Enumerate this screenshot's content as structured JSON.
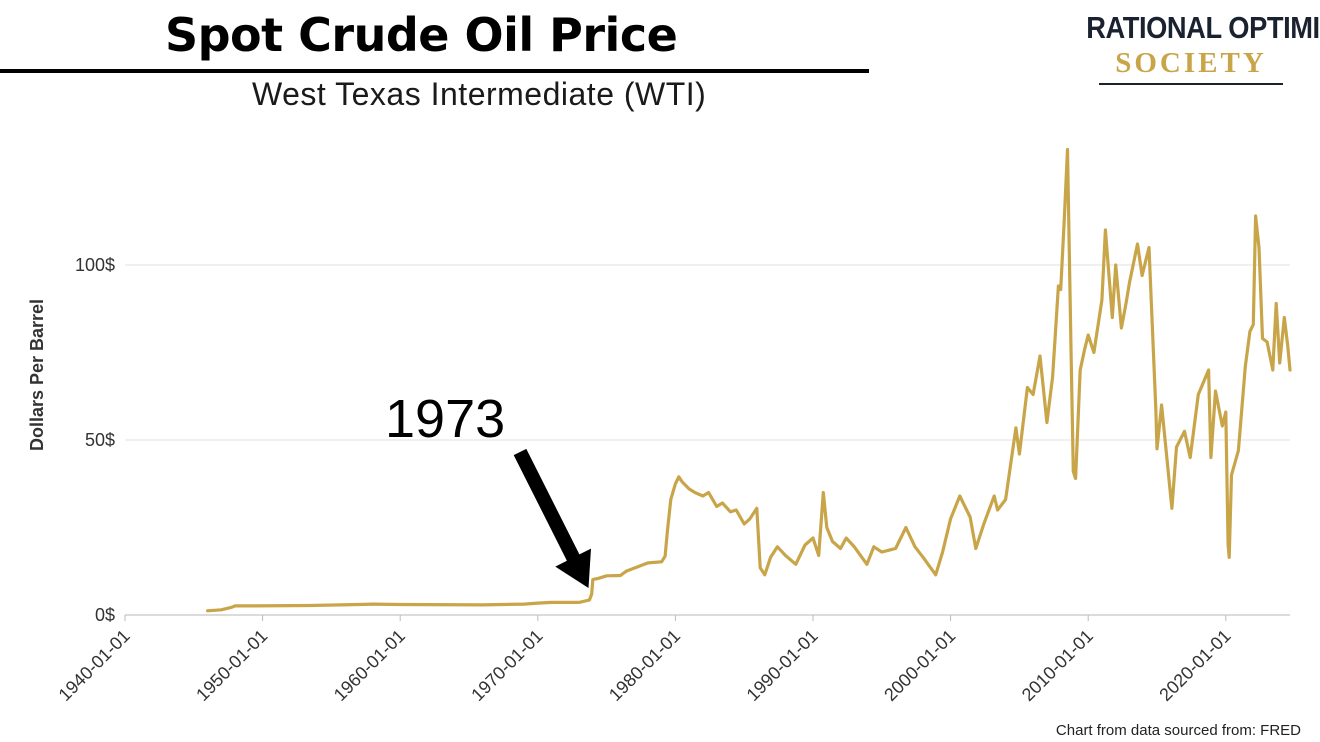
{
  "header": {
    "title": "Spot Crude Oil Price",
    "subtitle": "West Texas Intermediate (WTI)"
  },
  "logo": {
    "line1": "RATIONAL OPTIMIST",
    "line2": "SOCIETY"
  },
  "source": "Chart from data sourced from: FRED",
  "colors": {
    "line": "#c9a54a",
    "grid": "#e6e6e6",
    "arrow": "#000000"
  },
  "chart_data": {
    "type": "line",
    "title": "Spot Crude Oil Price",
    "subtitle": "West Texas Intermediate (WTI)",
    "xlabel": "",
    "ylabel": "Dollars Per Barrel",
    "xlim": [
      "1940-01-01",
      "2024-09-01"
    ],
    "ylim": [
      0,
      140
    ],
    "grid": "horizontal",
    "x_ticks": [
      "1940-01-01",
      "1950-01-01",
      "1960-01-01",
      "1970-01-01",
      "1980-01-01",
      "1990-01-01",
      "2000-01-01",
      "2010-01-01",
      "2020-01-01"
    ],
    "y_ticks": [
      {
        "value": 0,
        "label": "0$"
      },
      {
        "value": 50,
        "label": "50$"
      },
      {
        "value": 100,
        "label": "100$"
      }
    ],
    "annotation": {
      "text": "1973",
      "points_to_year": 1973.9,
      "points_to_value": 4.3
    },
    "series": [
      {
        "x": [
          "1946-01-01",
          "1947-01-01",
          "1947-10-01",
          "1948-01-01",
          "1949-06-01",
          "1953-06-01",
          "1957-01-01",
          "1958-01-01",
          "1960-01-01",
          "1966-01-01",
          "1969-01-01",
          "1970-01-01",
          "1971-01-01",
          "1973-01-01",
          "1973-10-01",
          "1973-12-01",
          "1974-01-01",
          "1974-06-01",
          "1975-01-01",
          "1976-01-01",
          "1976-06-01",
          "1977-06-01",
          "1978-01-01",
          "1979-01-01",
          "1979-04-01",
          "1979-06-01",
          "1979-09-01",
          "1980-01-01",
          "1980-04-01",
          "1980-07-01",
          "1981-01-01",
          "1981-06-01",
          "1982-01-01",
          "1982-06-01",
          "1983-01-01",
          "1983-06-01",
          "1984-01-01",
          "1984-06-01",
          "1985-01-01",
          "1985-06-01",
          "1985-12-01",
          "1986-03-01",
          "1986-07-01",
          "1986-12-01",
          "1987-06-01",
          "1988-01-01",
          "1988-10-01",
          "1989-06-01",
          "1990-01-01",
          "1990-06-01",
          "1990-10-01",
          "1991-01-01",
          "1991-06-01",
          "1992-01-01",
          "1992-06-01",
          "1993-01-01",
          "1993-12-01",
          "1994-06-01",
          "1995-01-01",
          "1996-01-01",
          "1996-10-01",
          "1997-06-01",
          "1998-01-01",
          "1998-12-01",
          "1999-06-01",
          "2000-01-01",
          "2000-09-01",
          "2001-06-01",
          "2001-11-01",
          "2002-06-01",
          "2003-03-01",
          "2003-06-01",
          "2004-01-01",
          "2004-10-01",
          "2005-01-01",
          "2005-08-01",
          "2006-01-01",
          "2006-07-01",
          "2007-01-01",
          "2007-06-01",
          "2007-11-01",
          "2008-01-01",
          "2008-04-01",
          "2008-07-01",
          "2008-10-01",
          "2008-12-01",
          "2009-02-01",
          "2009-06-01",
          "2009-10-01",
          "2010-01-01",
          "2010-06-01",
          "2011-01-01",
          "2011-04-01",
          "2011-10-01",
          "2012-01-01",
          "2012-06-01",
          "2012-10-01",
          "2013-01-01",
          "2013-08-01",
          "2013-12-01",
          "2014-06-01",
          "2014-12-01",
          "2015-01-01",
          "2015-05-01",
          "2015-12-01",
          "2016-02-01",
          "2016-06-01",
          "2017-01-01",
          "2017-06-01",
          "2018-01-01",
          "2018-10-01",
          "2018-12-01",
          "2019-04-01",
          "2019-10-01",
          "2020-01-01",
          "2020-03-01",
          "2020-04-01",
          "2020-06-01",
          "2020-12-01",
          "2021-06-01",
          "2021-10-01",
          "2022-01-01",
          "2022-03-01",
          "2022-06-01",
          "2022-09-01",
          "2023-01-01",
          "2023-06-01",
          "2023-09-01",
          "2023-12-01",
          "2024-04-01",
          "2024-07-01",
          "2024-09-01"
        ],
        "values": [
          1.2,
          1.5,
          2.2,
          2.6,
          2.6,
          2.7,
          3.0,
          3.1,
          3.0,
          2.9,
          3.1,
          3.4,
          3.6,
          3.6,
          4.3,
          6.0,
          10.1,
          10.5,
          11.2,
          11.3,
          12.5,
          14.0,
          14.9,
          15.2,
          16.8,
          24.0,
          33.0,
          37.5,
          39.5,
          38.0,
          36.0,
          35.0,
          34.0,
          35.0,
          31.0,
          32.0,
          29.5,
          30.0,
          26.0,
          27.5,
          30.5,
          13.5,
          11.5,
          16.5,
          19.5,
          17.0,
          14.5,
          20.0,
          22.0,
          17.0,
          35.0,
          25.0,
          21.0,
          19.0,
          22.0,
          19.5,
          14.5,
          19.5,
          18.0,
          19.0,
          25.0,
          19.5,
          16.5,
          11.5,
          18.0,
          27.5,
          34.0,
          28.0,
          19.0,
          26.0,
          34.0,
          30.0,
          33.0,
          53.5,
          46.0,
          65.0,
          63.0,
          74.0,
          55.0,
          68.0,
          94.0,
          93.0,
          112.0,
          133.0,
          76.0,
          41.0,
          39.0,
          70.0,
          76.0,
          80.0,
          75.0,
          90.0,
          110.0,
          85.0,
          100.0,
          82.0,
          89.0,
          95.0,
          106.0,
          97.0,
          105.0,
          59.0,
          47.5,
          60.0,
          37.0,
          30.5,
          48.0,
          52.5,
          45.0,
          63.0,
          70.0,
          45.0,
          64.0,
          54.0,
          58.0,
          20.0,
          16.5,
          40.0,
          47.0,
          71.0,
          81.0,
          83.0,
          114.0,
          105.0,
          79.0,
          78.0,
          70.0,
          89.0,
          72.0,
          85.0,
          77.0,
          70.0
        ]
      }
    ]
  }
}
